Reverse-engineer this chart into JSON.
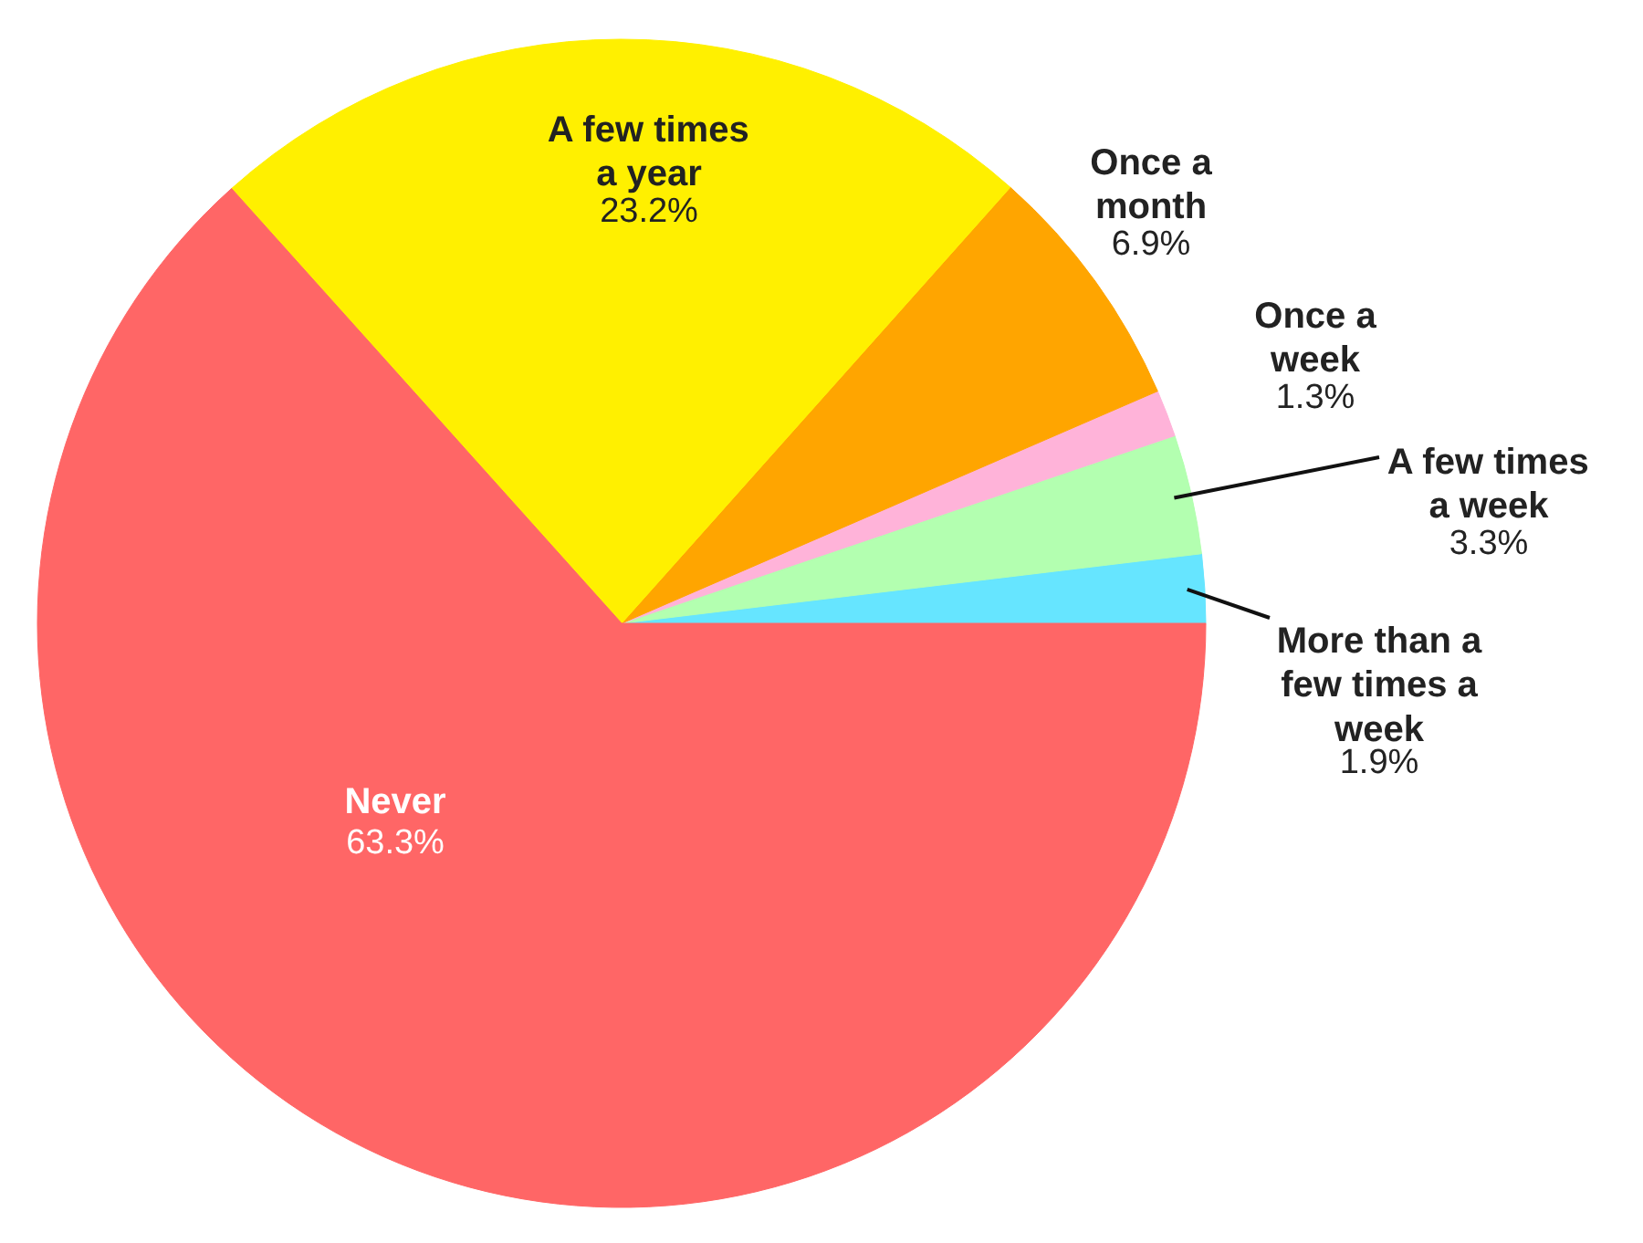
{
  "chart_data": {
    "type": "pie",
    "categories": [
      "More than a few times a week",
      "A few times a week",
      "Once a week",
      "Once a month",
      "A few times a year",
      "Never"
    ],
    "values": [
      1.9,
      3.3,
      1.3,
      6.9,
      23.2,
      63.3
    ],
    "colors": [
      "#66e5ff",
      "#b3ffb0",
      "#ffb3d9",
      "#ffa500",
      "#fff000",
      "#ff6666"
    ],
    "value_labels": [
      "1.9%",
      "3.3%",
      "1.3%",
      "6.9%",
      "23.2%",
      "63.3%"
    ]
  }
}
